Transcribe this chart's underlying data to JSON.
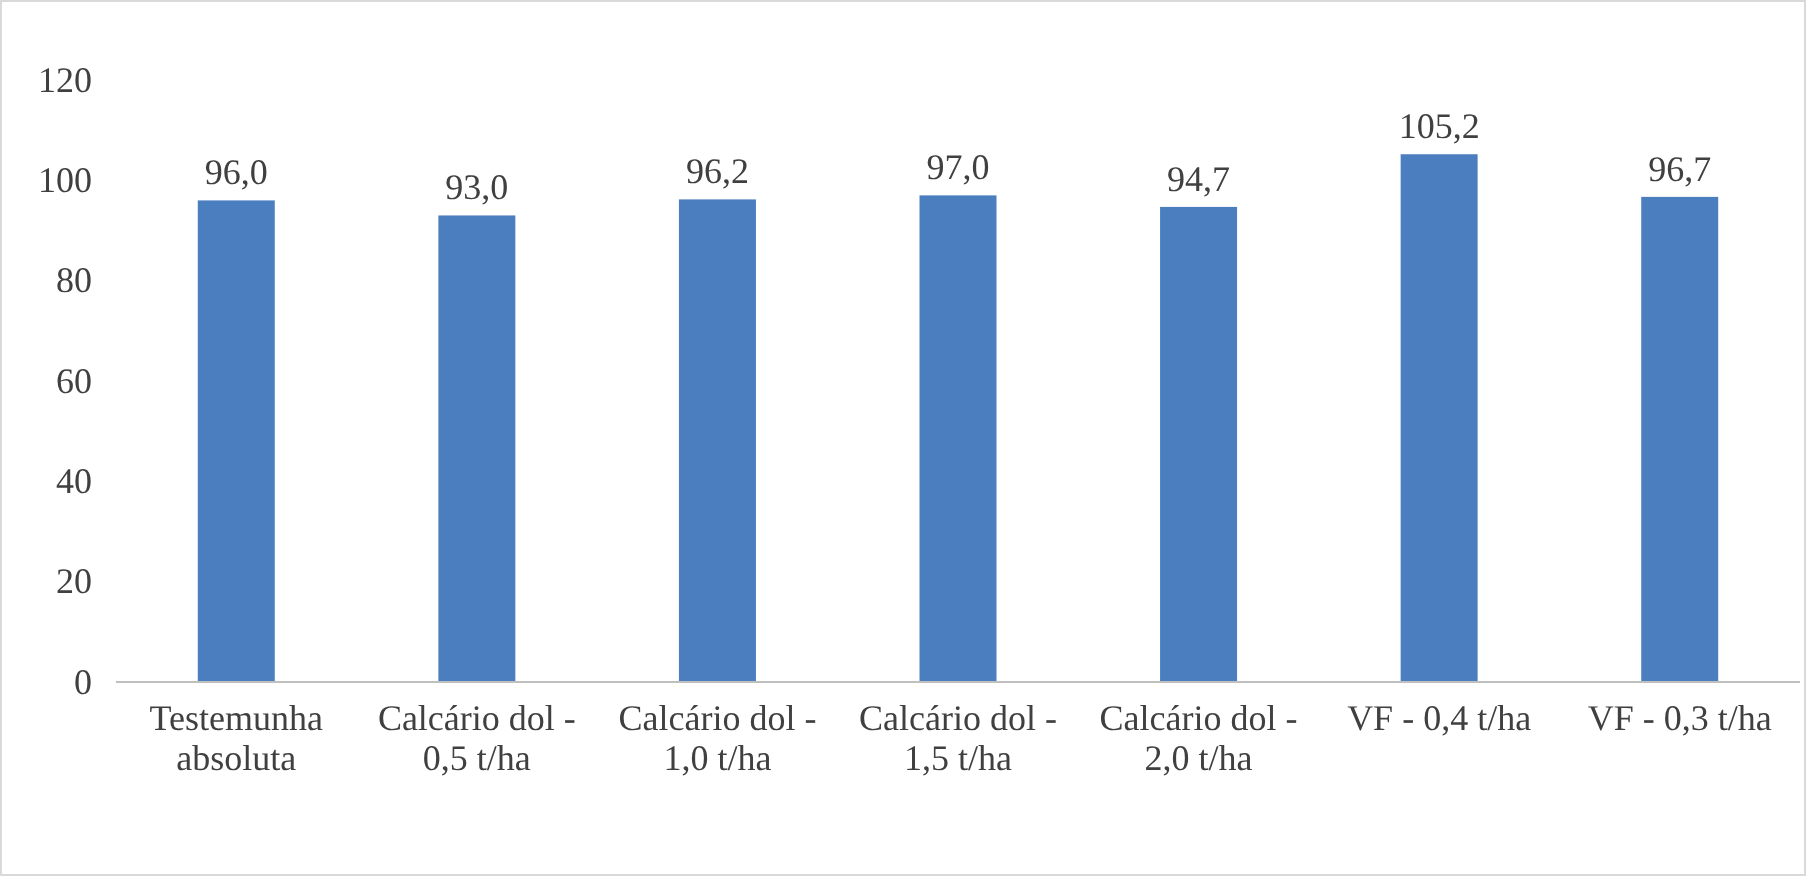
{
  "chart_data": {
    "type": "bar",
    "categories": [
      "Testemunha absoluta",
      "Calcário dol - 0,5 t/ha",
      "Calcário dol - 1,0 t/ha",
      "Calcário dol - 1,5 t/ha",
      "Calcário dol - 2,0 t/ha",
      "VF - 0,4 t/ha",
      "VF - 0,3 t/ha"
    ],
    "values": [
      96.0,
      93.0,
      96.2,
      97.0,
      94.7,
      105.2,
      96.7
    ],
    "color": "#4a7ebf",
    "ylim": [
      0,
      120
    ],
    "yticks": [
      0,
      20,
      40,
      60,
      80,
      100,
      120
    ],
    "data_labels": true,
    "value_labels": [
      "96,0",
      "93,0",
      "96,2",
      "97,0",
      "94,7",
      "105,2",
      "96,7"
    ]
  }
}
